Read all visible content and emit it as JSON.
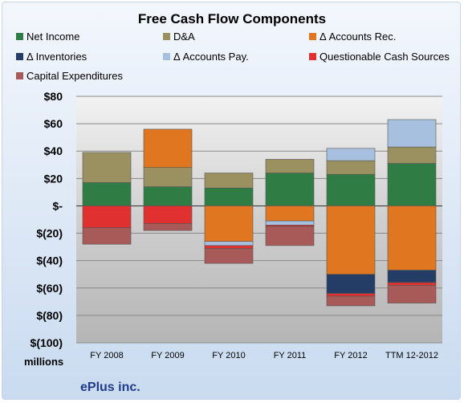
{
  "title": "Free Cash Flow Components",
  "units_label": "millions",
  "company": "ePlus inc.",
  "chart_data": {
    "type": "bar",
    "stacked": true,
    "title": "Free Cash Flow Components",
    "categories": [
      "FY 2008",
      "FY 2009",
      "FY 2010",
      "FY 2011",
      "FY 2012",
      "TTM 12-2012"
    ],
    "ylim": [
      -100,
      80
    ],
    "yticks": [
      80,
      60,
      40,
      20,
      0,
      -20,
      -40,
      -60,
      -80,
      -100
    ],
    "ytick_labels": [
      "$80",
      "$60",
      "$40",
      "$20",
      "$-",
      "$(20)",
      "$(40)",
      "$(60)",
      "$(80)",
      "$(100)"
    ],
    "grid": true,
    "legend_position": "top",
    "series": [
      {
        "name": "Net Income",
        "color": "#2f7d45",
        "values": [
          17,
          14,
          13,
          24,
          23,
          31
        ]
      },
      {
        "name": "D&A",
        "color": "#9b9060",
        "values": [
          22,
          14,
          11,
          10,
          10,
          12
        ]
      },
      {
        "name": "Δ Accounts Rec.",
        "color": "#e0761f",
        "values": [
          0,
          28,
          -26,
          -11,
          -50,
          -47
        ]
      },
      {
        "name": "Δ Inventories",
        "color": "#243d66",
        "values": [
          0,
          0,
          0,
          0,
          -14,
          -9
        ]
      },
      {
        "name": "Δ Accounts Pay.",
        "color": "#a8c0e0",
        "values": [
          0,
          0,
          -3,
          -3,
          9,
          20
        ]
      },
      {
        "name": "Questionable Cash Sources",
        "color": "#e03030",
        "values": [
          -16,
          -13,
          -2,
          -1,
          -2,
          -2
        ]
      },
      {
        "name": "Capital Expenditures",
        "color": "#a85a58",
        "values": [
          -12,
          -5,
          -11,
          -14,
          -7,
          -13
        ]
      }
    ]
  }
}
